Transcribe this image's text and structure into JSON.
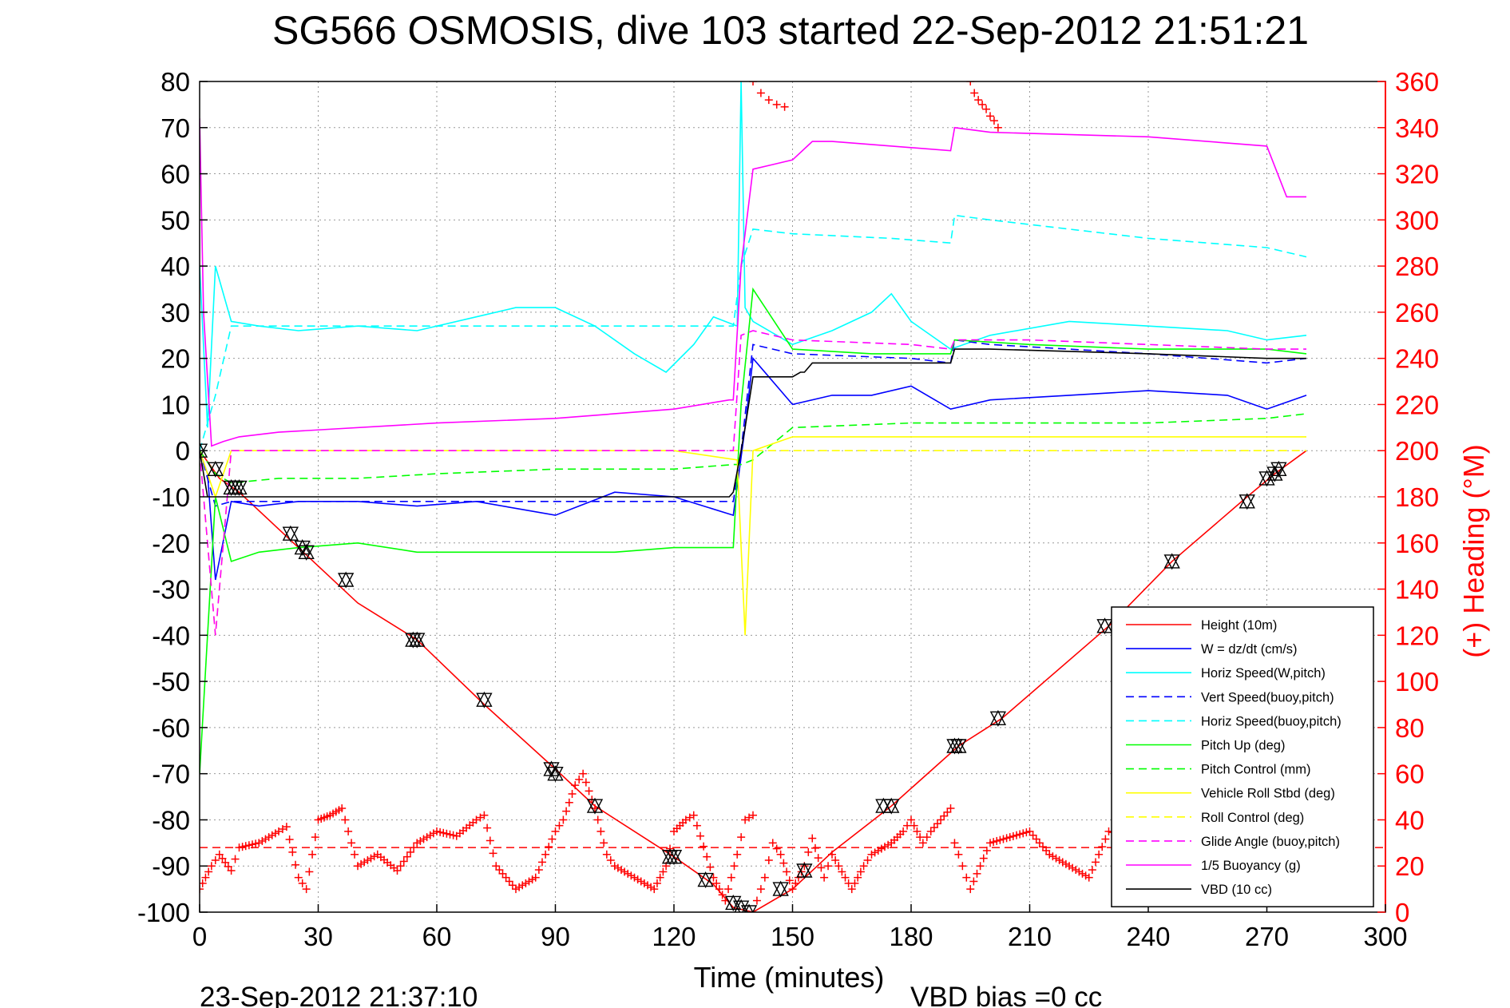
{
  "chart_data": {
    "type": "line",
    "title": "SG566 OSMOSIS, dive 103 started 22-Sep-2012 21:51:21",
    "xlabel": "Time (minutes)",
    "ylabel_right": "(+) Heading (°M)",
    "xlim": [
      0,
      300
    ],
    "ylim": [
      -100,
      80
    ],
    "ylim_right": [
      0,
      360
    ],
    "x_ticks": [
      "0",
      "30",
      "60",
      "90",
      "120",
      "150",
      "180",
      "210",
      "240",
      "270",
      "300"
    ],
    "y_ticks": [
      "80",
      "70",
      "60",
      "50",
      "40",
      "30",
      "20",
      "10",
      "0",
      "-10",
      "-20",
      "-30",
      "-40",
      "-50",
      "-60",
      "-70",
      "-80",
      "-90",
      "-100"
    ],
    "y_right_ticks": [
      "360",
      "340",
      "320",
      "300",
      "280",
      "260",
      "240",
      "220",
      "200",
      "180",
      "160",
      "140",
      "120",
      "100",
      "80",
      "60",
      "40",
      "20",
      "0"
    ],
    "grid": true,
    "legend_position": "bottom-right",
    "footer_left": "23-Sep-2012 21:37:10",
    "footer_right": "VBD bias =0 cc",
    "colors": {
      "height": "#ff0000",
      "w": "#0000ff",
      "horiz_w": "#00ffff",
      "pitch": "#00ff00",
      "roll": "#ffff00",
      "buoy": "#ff00ff",
      "vbd": "#000000",
      "heading": "#ff0000"
    },
    "series": [
      {
        "name": "Height (10m)",
        "style": "solid",
        "color": "#ff0000",
        "x": [
          0,
          5,
          10,
          20,
          30,
          40,
          55,
          72,
          90,
          100,
          120,
          130,
          135,
          140,
          150,
          160,
          175,
          192,
          203,
          230,
          246,
          265,
          272,
          280
        ],
        "y": [
          0,
          -6,
          -9,
          -17,
          -25,
          -33,
          -41,
          -55,
          -69,
          -77,
          -88,
          -94,
          -99,
          -100,
          -95,
          -87,
          -77,
          -64,
          -58,
          -38,
          -24,
          -10,
          -5,
          0
        ]
      },
      {
        "name": "W = dz/dt (cm/s)",
        "style": "solid",
        "color": "#0000ff",
        "x": [
          0,
          2,
          4,
          8,
          15,
          25,
          40,
          55,
          70,
          90,
          105,
          120,
          135,
          138,
          140,
          150,
          160,
          170,
          180,
          190,
          200,
          220,
          240,
          260,
          270,
          280
        ],
        "y": [
          0,
          -5,
          -28,
          -11,
          -12,
          -11,
          -11,
          -12,
          -11,
          -14,
          -9,
          -10,
          -14,
          5,
          20,
          10,
          12,
          12,
          14,
          9,
          11,
          12,
          13,
          12,
          9,
          12
        ]
      },
      {
        "name": "Horiz Speed(W,pitch)",
        "style": "solid",
        "color": "#00ffff",
        "x": [
          0,
          2,
          4,
          8,
          15,
          25,
          40,
          55,
          70,
          80,
          90,
          100,
          110,
          118,
          125,
          130,
          136,
          137,
          138,
          140,
          150,
          160,
          170,
          175,
          180,
          190,
          200,
          220,
          240,
          260,
          270,
          280
        ],
        "y": [
          40,
          5,
          40,
          28,
          27,
          26,
          27,
          26,
          29,
          31,
          31,
          27,
          21,
          17,
          23,
          29,
          27,
          80,
          31,
          28,
          23,
          26,
          30,
          34,
          28,
          22,
          25,
          28,
          27,
          26,
          24,
          25
        ]
      },
      {
        "name": "Vert Speed(buoy,pitch)",
        "style": "dash",
        "color": "#0000ff",
        "x": [
          0,
          4,
          8,
          20,
          40,
          60,
          90,
          120,
          135,
          137,
          140,
          150,
          180,
          190,
          191,
          200,
          240,
          270,
          280
        ],
        "y": [
          0,
          -12,
          -11,
          -11,
          -11,
          -11,
          -11,
          -11,
          -11,
          0,
          23,
          21,
          20,
          19,
          24,
          23,
          21,
          19,
          20
        ]
      },
      {
        "name": "Horiz Speed(buoy,pitch)",
        "style": "dash",
        "color": "#00ffff",
        "x": [
          0,
          4,
          8,
          20,
          40,
          60,
          90,
          120,
          135,
          137,
          140,
          150,
          175,
          190,
          191,
          200,
          240,
          270,
          280
        ],
        "y": [
          0,
          12,
          27,
          27,
          27,
          27,
          27,
          27,
          27,
          40,
          48,
          47,
          46,
          45,
          51,
          50,
          46,
          44,
          42
        ]
      },
      {
        "name": "Pitch Up (deg)",
        "style": "solid",
        "color": "#00ff00",
        "x": [
          0,
          4,
          8,
          15,
          25,
          40,
          55,
          70,
          90,
          105,
          120,
          135,
          137,
          140,
          150,
          170,
          190,
          191,
          210,
          240,
          270,
          280
        ],
        "y": [
          -70,
          -10,
          -24,
          -22,
          -21,
          -20,
          -22,
          -22,
          -22,
          -22,
          -21,
          -21,
          10,
          35,
          22,
          21,
          21,
          24,
          23,
          22,
          22,
          21
        ]
      },
      {
        "name": "Pitch Control (mm)",
        "style": "dash",
        "color": "#00ff00",
        "x": [
          0,
          4,
          8,
          20,
          40,
          60,
          90,
          120,
          135,
          137,
          140,
          150,
          180,
          210,
          240,
          270,
          280
        ],
        "y": [
          0,
          -5,
          -7,
          -6,
          -6,
          -5,
          -4,
          -4,
          -3,
          -3,
          -2,
          5,
          6,
          6,
          6,
          7,
          8
        ]
      },
      {
        "name": "Vehicle Roll Stbd (deg)",
        "style": "solid",
        "color": "#ffff00",
        "x": [
          0,
          4,
          8,
          40,
          80,
          120,
          136,
          138,
          140,
          150,
          180,
          190,
          220,
          250,
          270,
          280
        ],
        "y": [
          0,
          -10,
          0,
          0,
          0,
          0,
          -2,
          -40,
          0,
          3,
          3,
          3,
          3,
          3,
          3,
          3
        ]
      },
      {
        "name": "Roll Control (deg)",
        "style": "dash",
        "color": "#ffff00",
        "x": [
          0,
          4,
          8,
          40,
          80,
          120,
          136,
          138,
          140,
          150,
          200,
          250,
          280
        ],
        "y": [
          0,
          -40,
          0,
          0,
          0,
          0,
          0,
          0,
          0,
          0,
          0,
          0,
          0
        ]
      },
      {
        "name": "Glide Angle (buoy,pitch)",
        "style": "dash",
        "color": "#ff00ff",
        "x": [
          0,
          4,
          8,
          20,
          40,
          60,
          90,
          120,
          135,
          137,
          140,
          150,
          180,
          190,
          191,
          210,
          240,
          270,
          280
        ],
        "y": [
          0,
          -40,
          0,
          0,
          0,
          0,
          0,
          0,
          0,
          25,
          26,
          24,
          23,
          22,
          24,
          24,
          23,
          22,
          22
        ]
      },
      {
        "name": "1/5 Buoyancy (g)",
        "style": "solid",
        "color": "#ff00ff",
        "x": [
          0,
          1,
          3,
          6,
          10,
          20,
          60,
          90,
          120,
          134,
          135,
          137,
          140,
          145,
          150,
          155,
          160,
          190,
          191,
          200,
          240,
          270,
          275,
          280
        ],
        "y": [
          72,
          30,
          1,
          2,
          3,
          4,
          6,
          7,
          9,
          11,
          11,
          40,
          61,
          62,
          63,
          67,
          67,
          65,
          70,
          69,
          68,
          66,
          55,
          55
        ]
      },
      {
        "name": "VBD (10 cc)",
        "style": "solid",
        "color": "#000000",
        "x": [
          0,
          2,
          3,
          8,
          20,
          60,
          100,
          120,
          134,
          135,
          137,
          138,
          140,
          150,
          152,
          153,
          155,
          160,
          190,
          191,
          200,
          240,
          270,
          280
        ],
        "y": [
          0,
          -10,
          -10,
          -10,
          -10,
          -10,
          -10,
          -10,
          -10,
          -9,
          0,
          5,
          16,
          16,
          17,
          17,
          19,
          19,
          19,
          22,
          22,
          21,
          20,
          20
        ]
      }
    ],
    "heading": {
      "name": "(+) Heading",
      "color": "#ff0000",
      "mean": 28,
      "x": [
        0,
        3,
        5,
        8,
        10,
        15,
        20,
        22,
        25,
        27,
        30,
        33,
        36,
        40,
        45,
        50,
        55,
        60,
        65,
        70,
        72,
        75,
        80,
        85,
        90,
        92,
        95,
        97,
        100,
        103,
        105,
        110,
        115,
        118,
        120,
        123,
        125,
        130,
        133,
        136,
        138,
        140,
        141,
        143,
        145,
        147,
        150,
        153,
        155,
        158,
        160,
        165,
        168,
        170,
        175,
        178,
        180,
        183,
        185,
        190,
        191,
        193,
        195,
        200,
        210,
        215,
        220,
        225,
        230,
        240,
        250,
        255,
        260,
        270,
        280
      ],
      "y": [
        10,
        20,
        25,
        18,
        28,
        30,
        35,
        37,
        15,
        10,
        40,
        42,
        45,
        20,
        25,
        18,
        30,
        35,
        33,
        40,
        42,
        20,
        10,
        15,
        35,
        40,
        55,
        60,
        45,
        25,
        20,
        15,
        10,
        20,
        35,
        40,
        42,
        15,
        5,
        25,
        40,
        42,
        5,
        15,
        30,
        25,
        10,
        20,
        32,
        15,
        25,
        10,
        20,
        25,
        30,
        35,
        40,
        30,
        35,
        45,
        30,
        20,
        10,
        30,
        35,
        25,
        20,
        15,
        35,
        30,
        30,
        20,
        25,
        30,
        35
      ]
    },
    "heading_wraps": [
      {
        "x": [
          138,
          140,
          142,
          144,
          146,
          148
        ],
        "y": [
          365,
          360,
          355,
          352,
          350,
          349
        ]
      },
      {
        "x": [
          195,
          196,
          197,
          198,
          199,
          200,
          201,
          202
        ],
        "y": [
          360,
          355,
          352,
          350,
          348,
          345,
          343,
          340
        ]
      }
    ],
    "markers": {
      "x": [
        0,
        4,
        8,
        9,
        10,
        23,
        26,
        27,
        37,
        54,
        55,
        72,
        89,
        90,
        100,
        119,
        120,
        128,
        135,
        137,
        139,
        147,
        153,
        173,
        175,
        191,
        192,
        202,
        229,
        246,
        265,
        270,
        272,
        273
      ],
      "y": [
        0,
        -4,
        -8,
        -8,
        -8,
        -18,
        -21,
        -22,
        -28,
        -41,
        -41,
        -54,
        -69,
        -70,
        -77,
        -88,
        -88,
        -93,
        -98,
        -99,
        -100,
        -95,
        -91,
        -77,
        -77,
        -64,
        -64,
        -58,
        -38,
        -24,
        -11,
        -6,
        -5,
        -4
      ]
    }
  }
}
